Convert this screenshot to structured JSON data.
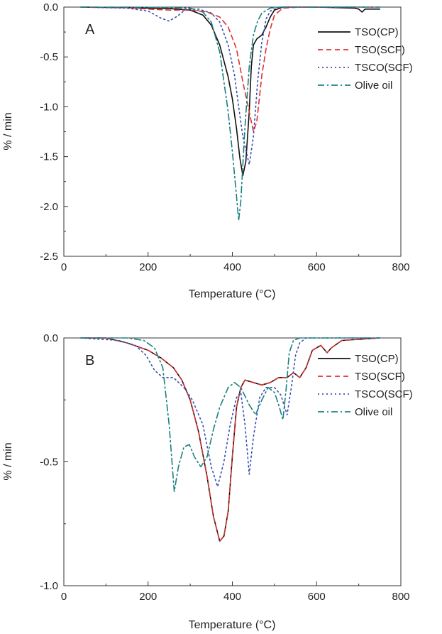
{
  "chart_data": [
    {
      "type": "line",
      "panel_label": "A",
      "xlabel": "Temperature (°C)",
      "ylabel": "% / min",
      "xlim": [
        0,
        800
      ],
      "ylim": [
        -2.5,
        0.0
      ],
      "x_ticks": [
        0,
        200,
        400,
        600,
        800
      ],
      "x_tick_labels": [
        "0",
        "200",
        "400",
        "600",
        "800"
      ],
      "y_ticks": [
        0.0,
        -0.5,
        -1.0,
        -1.5,
        -2.0,
        -2.5
      ],
      "y_tick_labels": [
        "0.0",
        "-0.5",
        "-1.0",
        "-1.5",
        "-2.0",
        "-2.5"
      ],
      "legend_position": "top-right",
      "series": [
        {
          "name": "TSO(CP)",
          "color": "#111111",
          "dash": "solid",
          "points": [
            [
              40,
              0
            ],
            [
              150,
              -0.005
            ],
            [
              200,
              -0.01
            ],
            [
              250,
              -0.015
            ],
            [
              300,
              -0.03
            ],
            [
              330,
              -0.08
            ],
            [
              350,
              -0.18
            ],
            [
              370,
              -0.38
            ],
            [
              390,
              -0.7
            ],
            [
              400,
              -0.92
            ],
            [
              410,
              -1.22
            ],
            [
              418,
              -1.52
            ],
            [
              425,
              -1.69
            ],
            [
              432,
              -1.55
            ],
            [
              440,
              -1.05
            ],
            [
              445,
              -0.6
            ],
            [
              450,
              -0.38
            ],
            [
              458,
              -0.32
            ],
            [
              470,
              -0.28
            ],
            [
              480,
              -0.2
            ],
            [
              490,
              -0.1
            ],
            [
              500,
              -0.03
            ],
            [
              520,
              0
            ],
            [
              600,
              0
            ],
            [
              690,
              -0.01
            ],
            [
              700,
              -0.02
            ],
            [
              708,
              -0.05
            ],
            [
              715,
              -0.02
            ],
            [
              750,
              -0.02
            ]
          ]
        },
        {
          "name": "TSO(SCF)",
          "color": "#e03030",
          "dash": "7,5",
          "points": [
            [
              40,
              0
            ],
            [
              150,
              -0.005
            ],
            [
              200,
              -0.02
            ],
            [
              250,
              -0.03
            ],
            [
              300,
              -0.03
            ],
            [
              340,
              -0.05
            ],
            [
              370,
              -0.1
            ],
            [
              390,
              -0.2
            ],
            [
              410,
              -0.42
            ],
            [
              425,
              -0.75
            ],
            [
              440,
              -1.05
            ],
            [
              450,
              -1.25
            ],
            [
              458,
              -1.15
            ],
            [
              465,
              -0.88
            ],
            [
              470,
              -0.68
            ],
            [
              480,
              -0.42
            ],
            [
              490,
              -0.22
            ],
            [
              500,
              -0.08
            ],
            [
              520,
              -0.01
            ],
            [
              560,
              0
            ],
            [
              750,
              0
            ]
          ]
        },
        {
          "name": "TSCO(SCF)",
          "color": "#3a4fb0",
          "dash": "2,4",
          "points": [
            [
              40,
              0
            ],
            [
              150,
              -0.01
            ],
            [
              200,
              -0.04
            ],
            [
              230,
              -0.11
            ],
            [
              250,
              -0.14
            ],
            [
              270,
              -0.09
            ],
            [
              290,
              -0.02
            ],
            [
              320,
              -0.02
            ],
            [
              350,
              -0.06
            ],
            [
              370,
              -0.15
            ],
            [
              390,
              -0.38
            ],
            [
              405,
              -0.68
            ],
            [
              415,
              -1.0
            ],
            [
              425,
              -1.3
            ],
            [
              440,
              -1.58
            ],
            [
              450,
              -1.3
            ],
            [
              460,
              -0.75
            ],
            [
              470,
              -0.35
            ],
            [
              480,
              -0.12
            ],
            [
              490,
              -0.04
            ],
            [
              510,
              0
            ],
            [
              750,
              0
            ]
          ]
        },
        {
          "name": "Olive oil",
          "color": "#1a8080",
          "dash": "9,4,2,4",
          "points": [
            [
              40,
              0
            ],
            [
              150,
              0
            ],
            [
              250,
              -0.005
            ],
            [
              300,
              -0.01
            ],
            [
              330,
              -0.05
            ],
            [
              350,
              -0.15
            ],
            [
              370,
              -0.45
            ],
            [
              390,
              -1.05
            ],
            [
              400,
              -1.45
            ],
            [
              410,
              -1.9
            ],
            [
              415,
              -2.14
            ],
            [
              420,
              -1.95
            ],
            [
              430,
              -1.2
            ],
            [
              440,
              -0.6
            ],
            [
              450,
              -0.28
            ],
            [
              460,
              -0.14
            ],
            [
              470,
              -0.06
            ],
            [
              490,
              -0.01
            ],
            [
              510,
              0
            ],
            [
              750,
              0
            ]
          ]
        }
      ]
    },
    {
      "type": "line",
      "panel_label": "B",
      "xlabel": "Temperature (°C)",
      "ylabel": "% / min",
      "xlim": [
        0,
        800
      ],
      "ylim": [
        -1.0,
        0.0
      ],
      "x_ticks": [
        0,
        200,
        400,
        600,
        800
      ],
      "x_tick_labels": [
        "0",
        "200",
        "400",
        "600",
        "800"
      ],
      "y_ticks": [
        0.0,
        -0.5,
        -1.0
      ],
      "y_tick_labels": [
        "0.0",
        "-0.5",
        "-1.0"
      ],
      "legend_position": "top-right",
      "series": [
        {
          "name": "TSO(CP)",
          "color": "#111111",
          "dash": "solid",
          "points": [
            [
              40,
              0
            ],
            [
              100,
              0
            ],
            [
              150,
              -0.02
            ],
            [
              200,
              -0.05
            ],
            [
              230,
              -0.08
            ],
            [
              260,
              -0.12
            ],
            [
              280,
              -0.17
            ],
            [
              300,
              -0.25
            ],
            [
              320,
              -0.38
            ],
            [
              340,
              -0.56
            ],
            [
              355,
              -0.72
            ],
            [
              370,
              -0.82
            ],
            [
              380,
              -0.8
            ],
            [
              390,
              -0.7
            ],
            [
              400,
              -0.48
            ],
            [
              410,
              -0.28
            ],
            [
              420,
              -0.2
            ],
            [
              430,
              -0.17
            ],
            [
              450,
              -0.18
            ],
            [
              470,
              -0.19
            ],
            [
              490,
              -0.18
            ],
            [
              510,
              -0.16
            ],
            [
              530,
              -0.16
            ],
            [
              545,
              -0.14
            ],
            [
              560,
              -0.16
            ],
            [
              575,
              -0.12
            ],
            [
              590,
              -0.05
            ],
            [
              610,
              -0.03
            ],
            [
              625,
              -0.06
            ],
            [
              635,
              -0.04
            ],
            [
              660,
              -0.01
            ],
            [
              750,
              0
            ]
          ]
        },
        {
          "name": "TSO(SCF)",
          "color": "#e03030",
          "dash": "7,5",
          "points": [
            [
              40,
              0
            ],
            [
              100,
              0
            ],
            [
              150,
              -0.02
            ],
            [
              200,
              -0.05
            ],
            [
              230,
              -0.08
            ],
            [
              260,
              -0.12
            ],
            [
              280,
              -0.17
            ],
            [
              300,
              -0.25
            ],
            [
              320,
              -0.38
            ],
            [
              340,
              -0.56
            ],
            [
              355,
              -0.72
            ],
            [
              370,
              -0.82
            ],
            [
              380,
              -0.8
            ],
            [
              390,
              -0.7
            ],
            [
              400,
              -0.48
            ],
            [
              410,
              -0.28
            ],
            [
              420,
              -0.2
            ],
            [
              430,
              -0.17
            ],
            [
              450,
              -0.18
            ],
            [
              470,
              -0.19
            ],
            [
              490,
              -0.18
            ],
            [
              510,
              -0.16
            ],
            [
              530,
              -0.16
            ],
            [
              545,
              -0.14
            ],
            [
              560,
              -0.16
            ],
            [
              575,
              -0.12
            ],
            [
              590,
              -0.05
            ],
            [
              610,
              -0.03
            ],
            [
              625,
              -0.06
            ],
            [
              635,
              -0.04
            ],
            [
              660,
              -0.01
            ],
            [
              750,
              0
            ]
          ]
        },
        {
          "name": "TSCO(SCF)",
          "color": "#3a4fb0",
          "dash": "2,4",
          "points": [
            [
              40,
              0
            ],
            [
              130,
              -0.01
            ],
            [
              170,
              -0.03
            ],
            [
              195,
              -0.07
            ],
            [
              215,
              -0.13
            ],
            [
              235,
              -0.16
            ],
            [
              260,
              -0.16
            ],
            [
              285,
              -0.2
            ],
            [
              305,
              -0.25
            ],
            [
              330,
              -0.35
            ],
            [
              350,
              -0.52
            ],
            [
              365,
              -0.6
            ],
            [
              380,
              -0.5
            ],
            [
              395,
              -0.35
            ],
            [
              410,
              -0.24
            ],
            [
              420,
              -0.22
            ],
            [
              430,
              -0.35
            ],
            [
              440,
              -0.55
            ],
            [
              450,
              -0.4
            ],
            [
              465,
              -0.24
            ],
            [
              480,
              -0.2
            ],
            [
              500,
              -0.2
            ],
            [
              515,
              -0.23
            ],
            [
              530,
              -0.31
            ],
            [
              540,
              -0.2
            ],
            [
              550,
              -0.07
            ],
            [
              560,
              -0.02
            ],
            [
              575,
              0
            ],
            [
              750,
              0
            ]
          ]
        },
        {
          "name": "Olive oil",
          "color": "#1a8080",
          "dash": "9,4,2,4",
          "points": [
            [
              40,
              0
            ],
            [
              150,
              0
            ],
            [
              190,
              -0.01
            ],
            [
              215,
              -0.04
            ],
            [
              235,
              -0.12
            ],
            [
              250,
              -0.35
            ],
            [
              262,
              -0.62
            ],
            [
              272,
              -0.52
            ],
            [
              285,
              -0.44
            ],
            [
              298,
              -0.43
            ],
            [
              310,
              -0.48
            ],
            [
              325,
              -0.52
            ],
            [
              340,
              -0.48
            ],
            [
              355,
              -0.37
            ],
            [
              370,
              -0.28
            ],
            [
              390,
              -0.2
            ],
            [
              405,
              -0.18
            ],
            [
              420,
              -0.2
            ],
            [
              440,
              -0.27
            ],
            [
              455,
              -0.31
            ],
            [
              470,
              -0.25
            ],
            [
              485,
              -0.2
            ],
            [
              500,
              -0.22
            ],
            [
              510,
              -0.27
            ],
            [
              520,
              -0.33
            ],
            [
              528,
              -0.2
            ],
            [
              535,
              -0.06
            ],
            [
              545,
              -0.01
            ],
            [
              560,
              0
            ],
            [
              750,
              0
            ]
          ]
        }
      ]
    }
  ]
}
